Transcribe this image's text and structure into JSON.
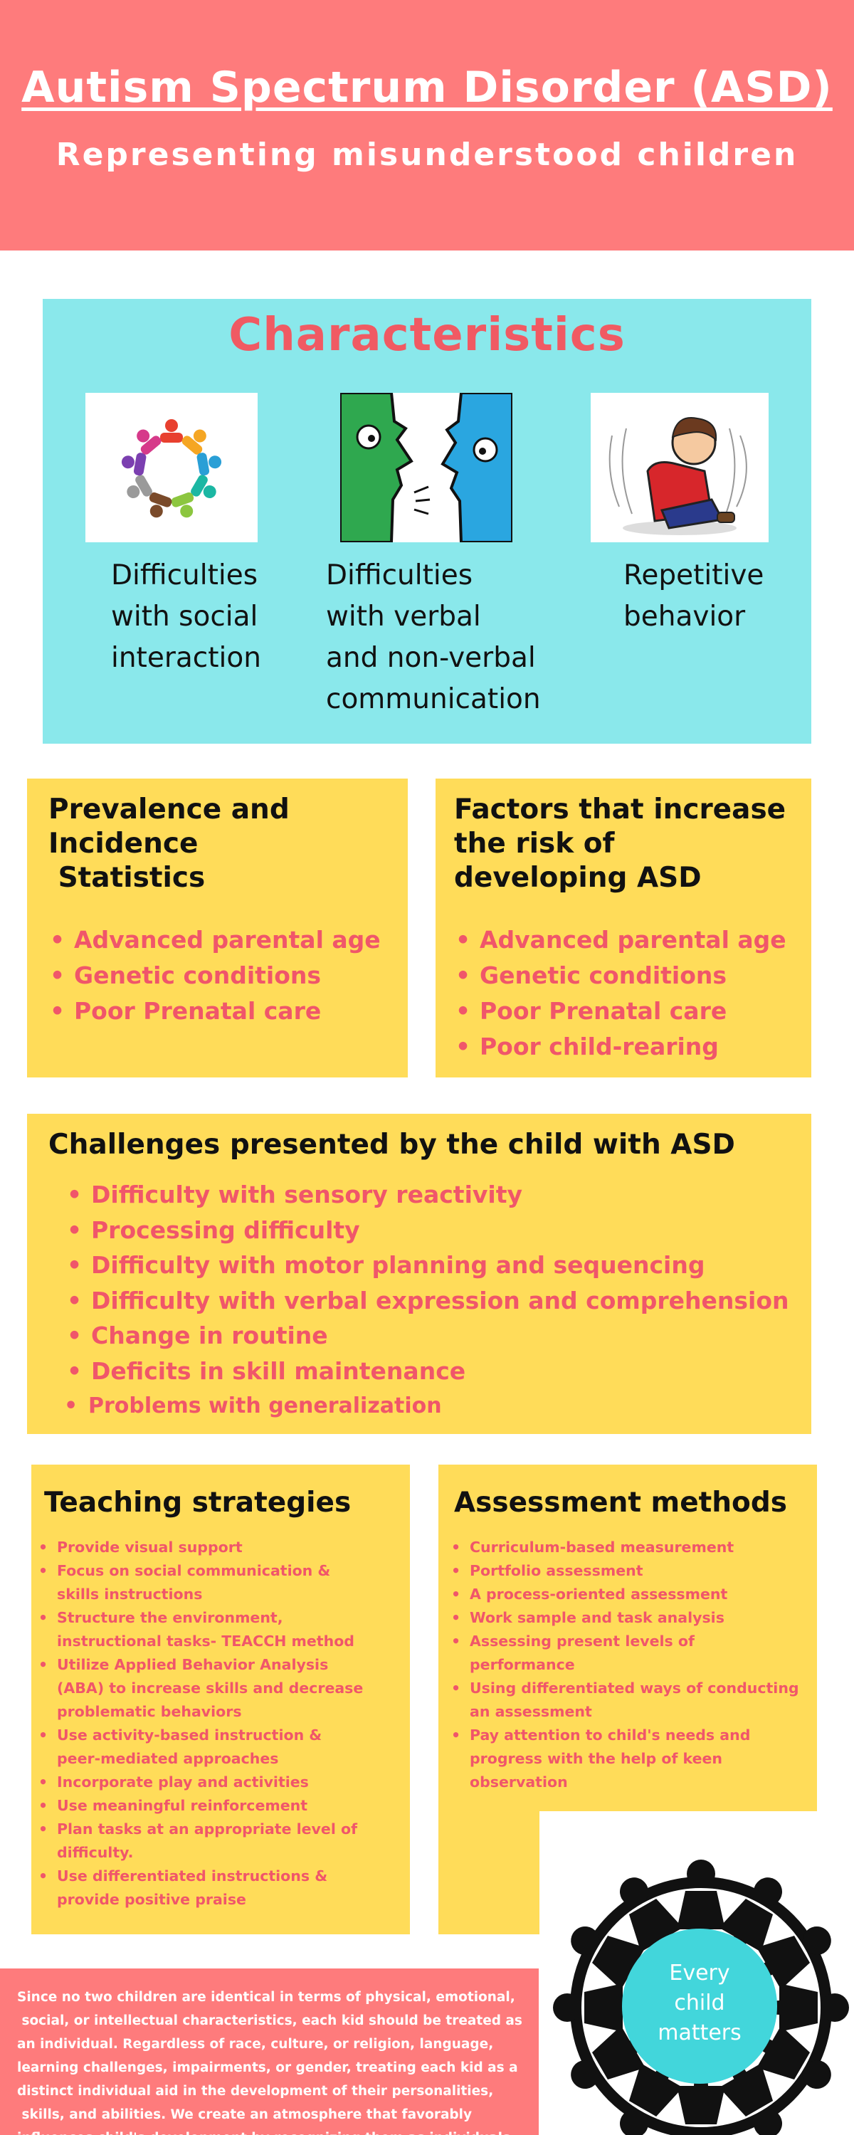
{
  "header": {
    "title": "Autism Spectrum Disorder (ASD)",
    "subtitle": "Representing misunderstood children"
  },
  "characteristics": {
    "heading": "Characteristics",
    "items": [
      {
        "icon": "people-circle-icon",
        "lines": [
          "Difficulties",
          "with social",
          "interaction"
        ]
      },
      {
        "icon": "talking-faces-icon",
        "lines": [
          "Difficulties",
          "with verbal",
          "and non-verbal",
          "communication"
        ]
      },
      {
        "icon": "child-rocking-icon",
        "lines": [
          "Repetitive",
          "behavior"
        ]
      }
    ]
  },
  "prevalence": {
    "title_lines": [
      "Prevalence and",
      "Incidence",
      " Statistics"
    ],
    "items": [
      "Advanced parental age",
      "Genetic conditions",
      "Poor Prenatal care"
    ]
  },
  "factors": {
    "title_lines": [
      "Factors that increase",
      "the risk of",
      "developing ASD"
    ],
    "items": [
      "Advanced parental age",
      "Genetic conditions",
      "Poor Prenatal care",
      "Poor child-rearing"
    ]
  },
  "challenges": {
    "title": "Challenges presented by the child with ASD",
    "items": [
      "Difficulty with sensory reactivity",
      "Processing difficulty",
      "Difficulty with motor planning and sequencing",
      "Difficulty with verbal expression and comprehension",
      "Change in routine",
      "Deficits in skill maintenance",
      "Problems with generalization"
    ]
  },
  "teaching": {
    "title": "Teaching strategies",
    "lines": [
      {
        "text": "Provide visual support",
        "bullet": true
      },
      {
        "text": "Focus on social communication &",
        "bullet": true
      },
      {
        "text": "skills instructions",
        "bullet": false
      },
      {
        "text": "Structure the environment,",
        "bullet": true
      },
      {
        "text": "instructional tasks- TEACCH method",
        "bullet": false
      },
      {
        "text": "Utilize Applied Behavior Analysis",
        "bullet": true
      },
      {
        "text": "(ABA) to increase skills and decrease",
        "bullet": false
      },
      {
        "text": "problematic behaviors",
        "bullet": false
      },
      {
        "text": "Use activity-based instruction &",
        "bullet": true
      },
      {
        "text": "peer-mediated approaches",
        "bullet": false
      },
      {
        "text": "Incorporate play and activities",
        "bullet": true
      },
      {
        "text": "Use meaningful reinforcement",
        "bullet": true
      },
      {
        "text": "Plan tasks at an appropriate level of",
        "bullet": true
      },
      {
        "text": "difficulty.",
        "bullet": false
      },
      {
        "text": "Use differentiated instructions &",
        "bullet": true
      },
      {
        "text": "provide positive praise",
        "bullet": false
      }
    ]
  },
  "assessment": {
    "title": "Assessment methods",
    "lines": [
      {
        "text": "Curriculum-based measurement",
        "bullet": true
      },
      {
        "text": "Portfolio assessment",
        "bullet": true
      },
      {
        "text": "A process-oriented assessment",
        "bullet": true
      },
      {
        "text": "Work sample and task analysis",
        "bullet": true
      },
      {
        "text": "Assessing present levels of",
        "bullet": true
      },
      {
        "text": "performance",
        "bullet": false
      },
      {
        "text": "Using differentiated ways of conducting",
        "bullet": true
      },
      {
        "text": "an assessment",
        "bullet": false
      },
      {
        "text": "Pay attention to child's needs and",
        "bullet": true
      },
      {
        "text": "progress with the help of keen",
        "bullet": false
      },
      {
        "text": "observation",
        "bullet": false
      }
    ]
  },
  "footer": {
    "lines": [
      "Since no two children are identical in terms of physical, emotional,",
      " social, or intellectual characteristics, each kid should be treated as",
      "an individual. Regardless of race, culture, or religion, language,",
      "learning challenges, impairments, or gender, treating each kid as a",
      "distinct individual aid in the development of their personalities,",
      " skills, and abilities. We create an atmosphere that favorably",
      "influences child's development by recognizing them as individuals."
    ]
  },
  "badge": {
    "icon": "children-holding-hands-circle-icon",
    "lines": [
      "Every",
      "child",
      "matters"
    ]
  },
  "colors": {
    "header": "#fe7b7c",
    "characteristics_bg": "#8ae8eb",
    "box_yellow": "#ffdc59",
    "accent_pink": "#f0566a",
    "badge": "#42d6db"
  }
}
